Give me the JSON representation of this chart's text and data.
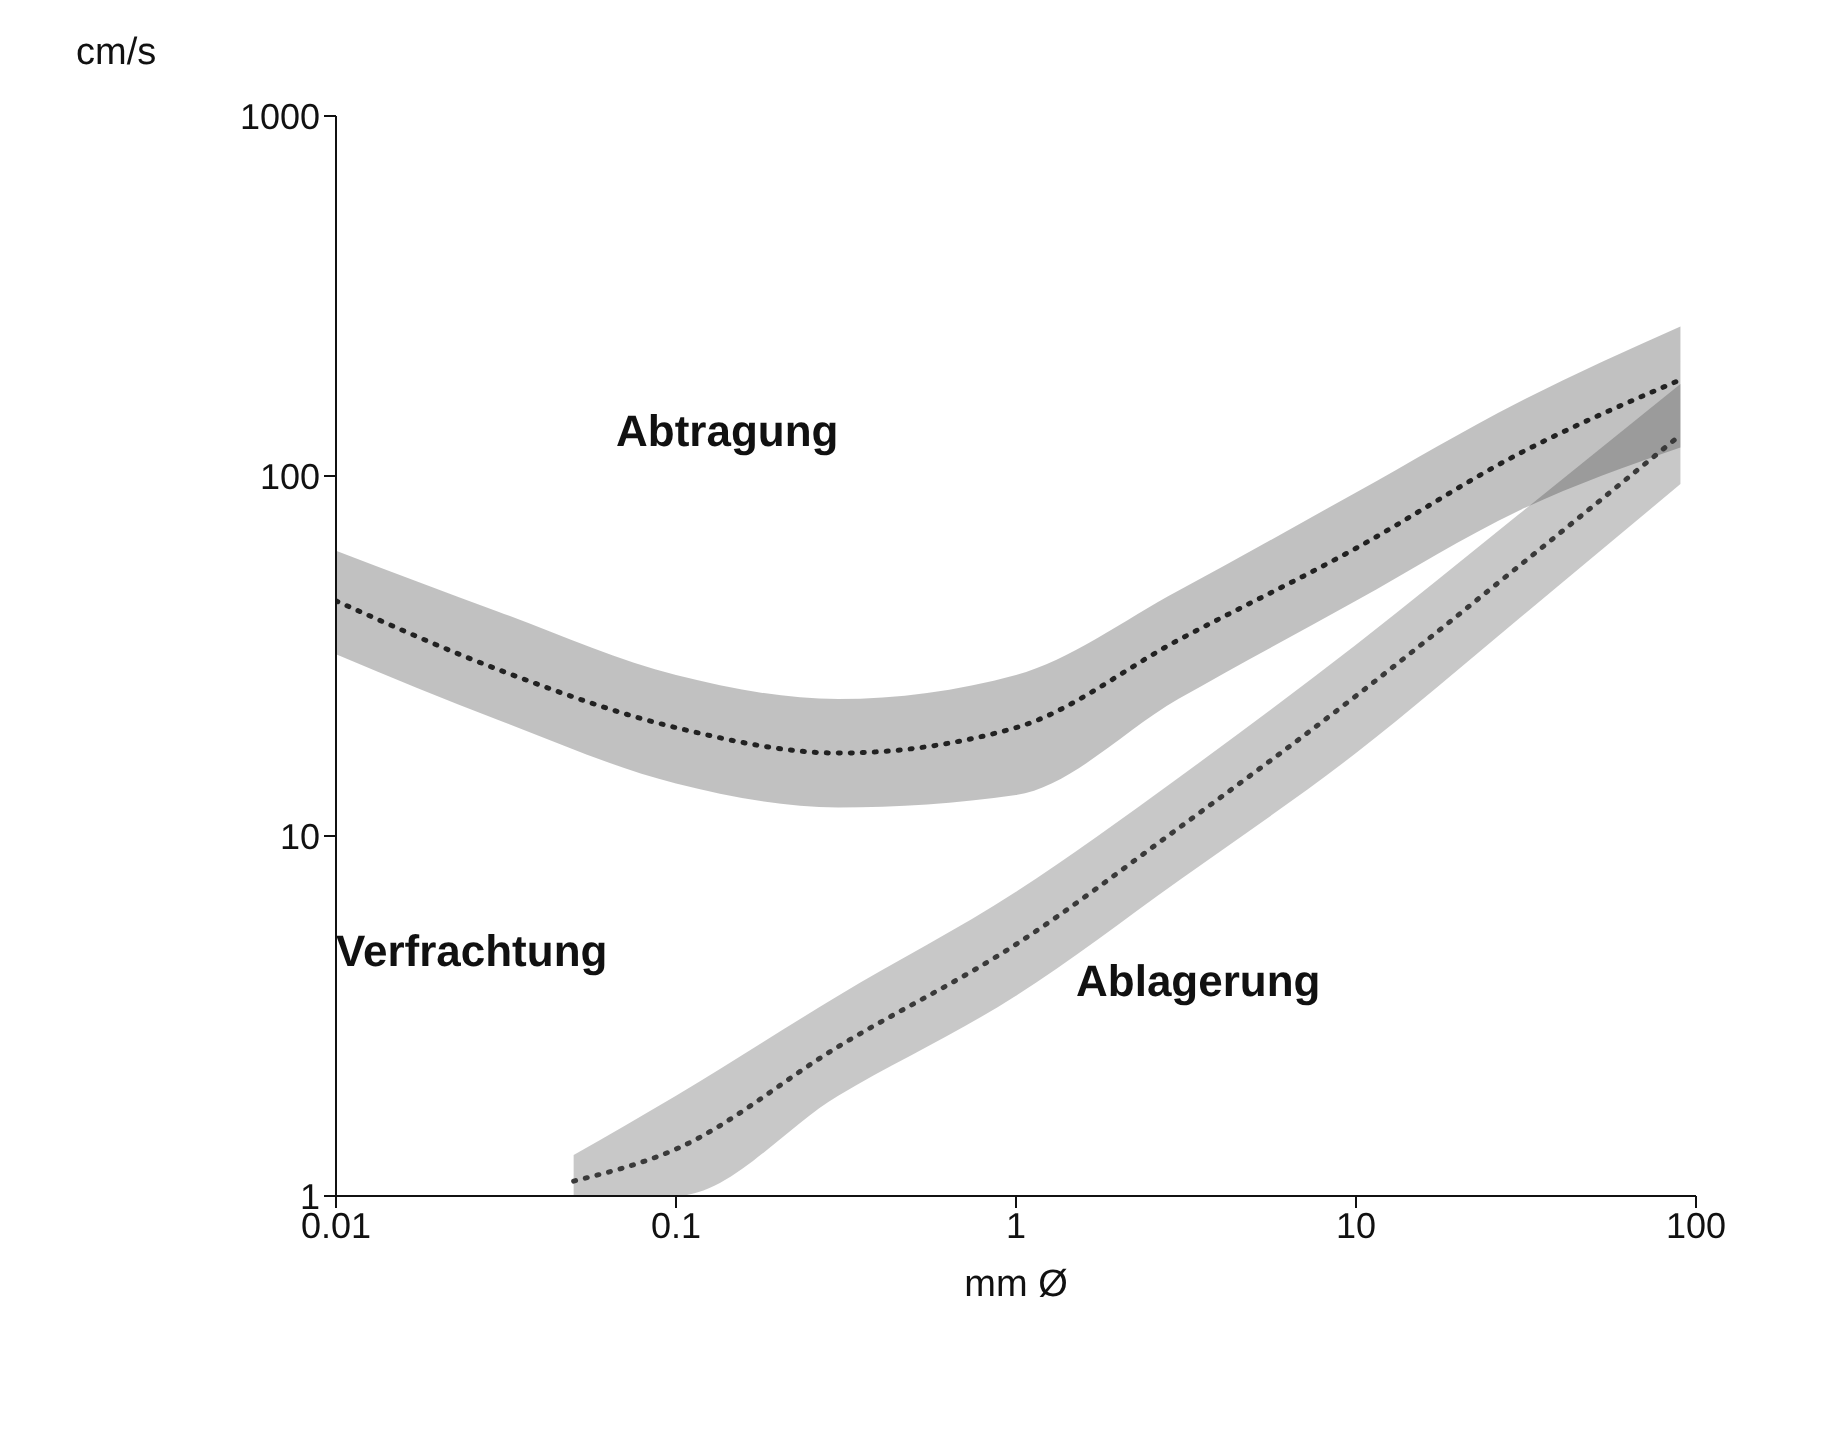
{
  "chart_data": {
    "type": "line",
    "xlabel": "mm Ø",
    "ylabel": "cm/s",
    "log": "xy",
    "grid": false,
    "legend": false,
    "line_style": "dotted",
    "marker": "none",
    "xlim": [
      0.01,
      100
    ],
    "xticks": [
      0.01,
      0.1,
      1,
      10,
      100
    ],
    "ylim": [
      1,
      1000
    ],
    "yticks": [
      1,
      10,
      100,
      1000
    ],
    "annotations": [
      "Abtragung",
      "Verfrachtung",
      "Ablagerung"
    ],
    "series": [
      {
        "color": "#222222",
        "x": [
          0.01,
          0.03,
          0.1,
          0.3,
          1,
          3,
          10,
          30,
          90
        ],
        "values": [
          45,
          29,
          20,
          17,
          20,
          35,
          63,
          115,
          185
        ],
        "lower": [
          32,
          21,
          14,
          12,
          13,
          24,
          45,
          80,
          120
        ],
        "upper": [
          62,
          42,
          28,
          24,
          28,
          48,
          90,
          160,
          260
        ]
      },
      {
        "color": "#3a3a3a",
        "x": [
          0.05,
          0.1,
          0.3,
          1,
          3,
          10,
          30,
          90
        ],
        "values": [
          1.1,
          1.35,
          2.6,
          5,
          10.5,
          24.5,
          56,
          130
        ],
        "lower": [
          1,
          1,
          1.9,
          3.6,
          7.5,
          17,
          40,
          95
        ],
        "upper": [
          1.3,
          1.9,
          3.6,
          7,
          14.5,
          34,
          78,
          180
        ]
      }
    ]
  }
}
